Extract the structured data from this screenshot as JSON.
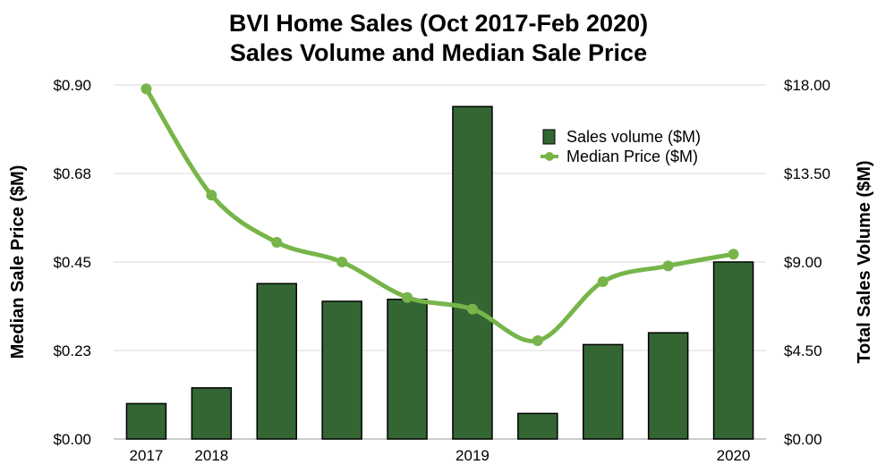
{
  "chart_data": {
    "type": "bar",
    "title_line1": "BVI Home Sales (Oct 2017-Feb 2020)",
    "title_line2": "Sales Volume and Median Sale Price",
    "ylabel_left": "Median Sale Price ($M)",
    "ylabel_right": "Total Sales Volume ($M)",
    "x_tick_labels": [
      "2017",
      "2018",
      "",
      "",
      "",
      "2019",
      "",
      "",
      "",
      "2020"
    ],
    "left_axis": {
      "ylim": [
        0,
        0.9
      ],
      "ticks": [
        "$0.00",
        "$0.23",
        "$0.45",
        "$0.68",
        "$0.90"
      ]
    },
    "right_axis": {
      "ylim": [
        0,
        18
      ],
      "ticks": [
        "$0.00",
        "$4.50",
        "$9.00",
        "$13.50",
        "$18.00"
      ]
    },
    "grid": true,
    "legend_position": "top-right",
    "series": [
      {
        "name": "Sales volume ($M)",
        "type": "bar",
        "axis": "right",
        "color": "#336633",
        "values": [
          1.8,
          2.6,
          7.9,
          7.0,
          7.1,
          16.9,
          1.3,
          4.8,
          5.4,
          9.0
        ]
      },
      {
        "name": "Median Price ($M)",
        "type": "line",
        "axis": "left",
        "color": "#77b54a",
        "values": [
          0.89,
          0.62,
          0.5,
          0.45,
          0.36,
          0.33,
          0.25,
          0.4,
          0.44,
          0.47
        ]
      }
    ]
  }
}
